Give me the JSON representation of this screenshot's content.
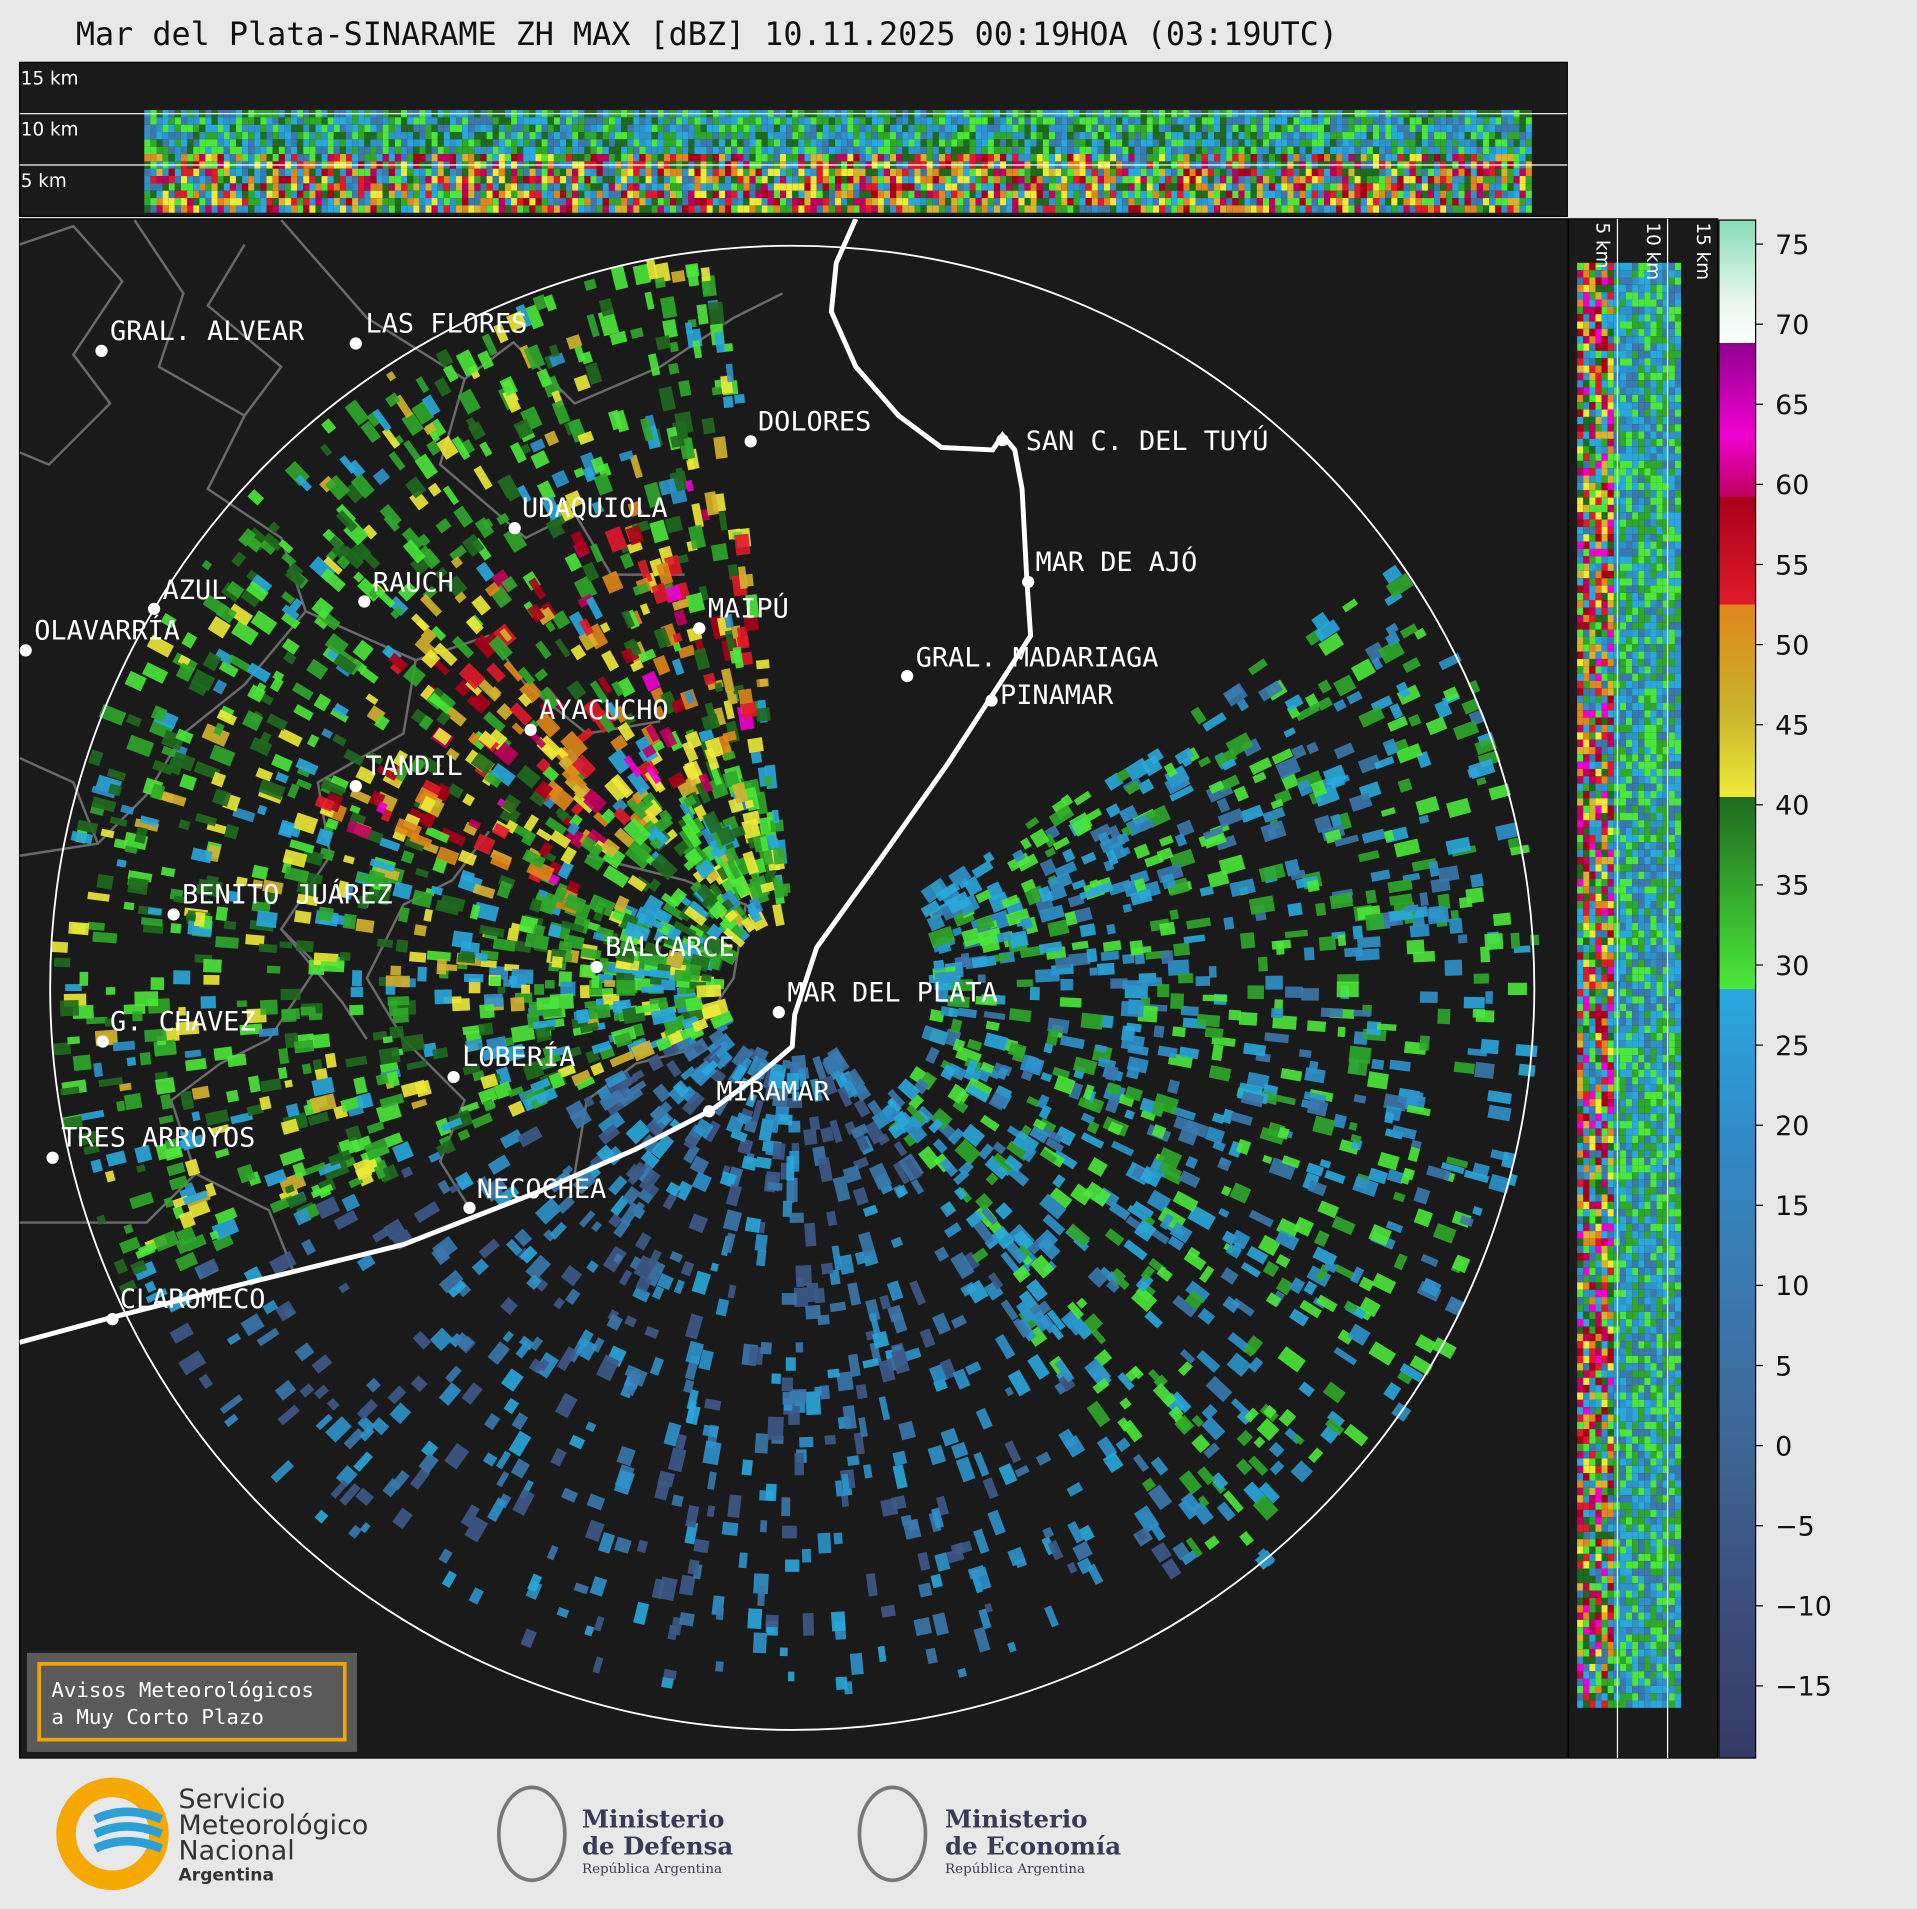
{
  "title": "Mar del Plata-SINARAME ZH MAX [dBZ] 10.11.2025 00:19HOA (03:19UTC)",
  "top_section": {
    "height_labels": [
      "15 km",
      "10 km",
      "5 km"
    ]
  },
  "side_section": {
    "height_labels": [
      "5 km",
      "10 km",
      "15 km"
    ]
  },
  "cities": [
    "GRAL. ALVEAR",
    "LAS FLORES",
    "DOLORES",
    "SAN C. DEL TUYÚ",
    "UDAQUIOLA",
    "MAR DE AJÓ",
    "AZUL",
    "RAUCH",
    "MAIPÚ",
    "OLAVARRÍA",
    "GRAL. MADARIAGA",
    "PINAMAR",
    "AYACUCHO",
    "TANDIL",
    "BENITO JUÁREZ",
    "BALCARCE",
    "MAR DEL PLATA",
    "G. CHAVEZ",
    "LOBERÍA",
    "MIRAMAR",
    "TRES ARROYOS",
    "NECOCHEA",
    "CLAROMECO"
  ],
  "colorbar": {
    "range": [
      -19.5,
      76.5
    ],
    "ticks": [
      {
        "value": -15,
        "label": "−15"
      },
      {
        "value": -10,
        "label": "−10"
      },
      {
        "value": -5,
        "label": "−5"
      },
      0,
      5,
      10,
      15,
      20,
      25,
      30,
      35,
      40,
      45,
      50,
      55,
      60,
      65,
      70,
      75
    ]
  },
  "notice": {
    "lines": [
      "Avisos Meteorológicos",
      "a Muy Corto Plazo"
    ]
  },
  "logos": [
    {
      "lines": [
        "Servicio",
        "Meteorológico",
        "Nacional",
        "Argentina"
      ]
    },
    {
      "lines": [
        "Ministerio",
        "de Defensa",
        "República Argentina"
      ]
    },
    {
      "lines": [
        "Ministerio",
        "de Economía",
        "República Argentina"
      ]
    }
  ]
}
